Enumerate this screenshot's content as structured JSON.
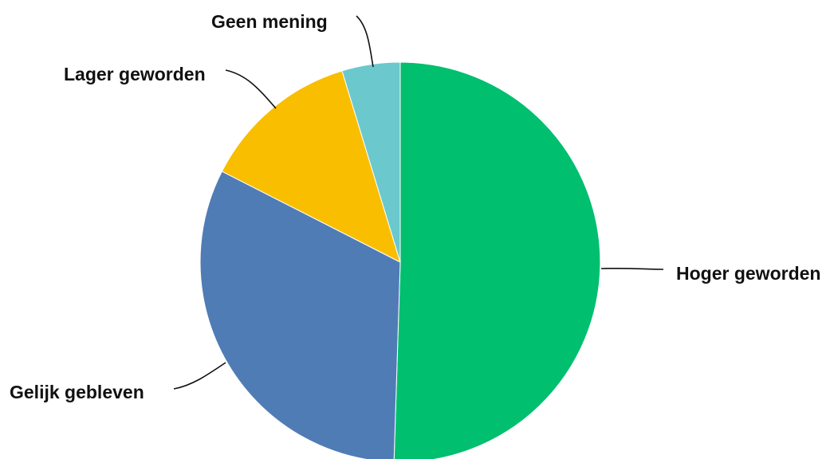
{
  "chart_data": {
    "type": "pie",
    "title": "",
    "slices": [
      {
        "label": "Hoger geworden",
        "value": 50.5,
        "color": "#00BF6F"
      },
      {
        "label": "Gelijk gebleven",
        "value": 32.0,
        "color": "#507CB6"
      },
      {
        "label": "Lager geworden",
        "value": 12.8,
        "color": "#F9BE00"
      },
      {
        "label": "Geen mening",
        "value": 4.7,
        "color": "#6BC8CD"
      }
    ],
    "legend": "none",
    "labels": "outside with leader lines"
  }
}
